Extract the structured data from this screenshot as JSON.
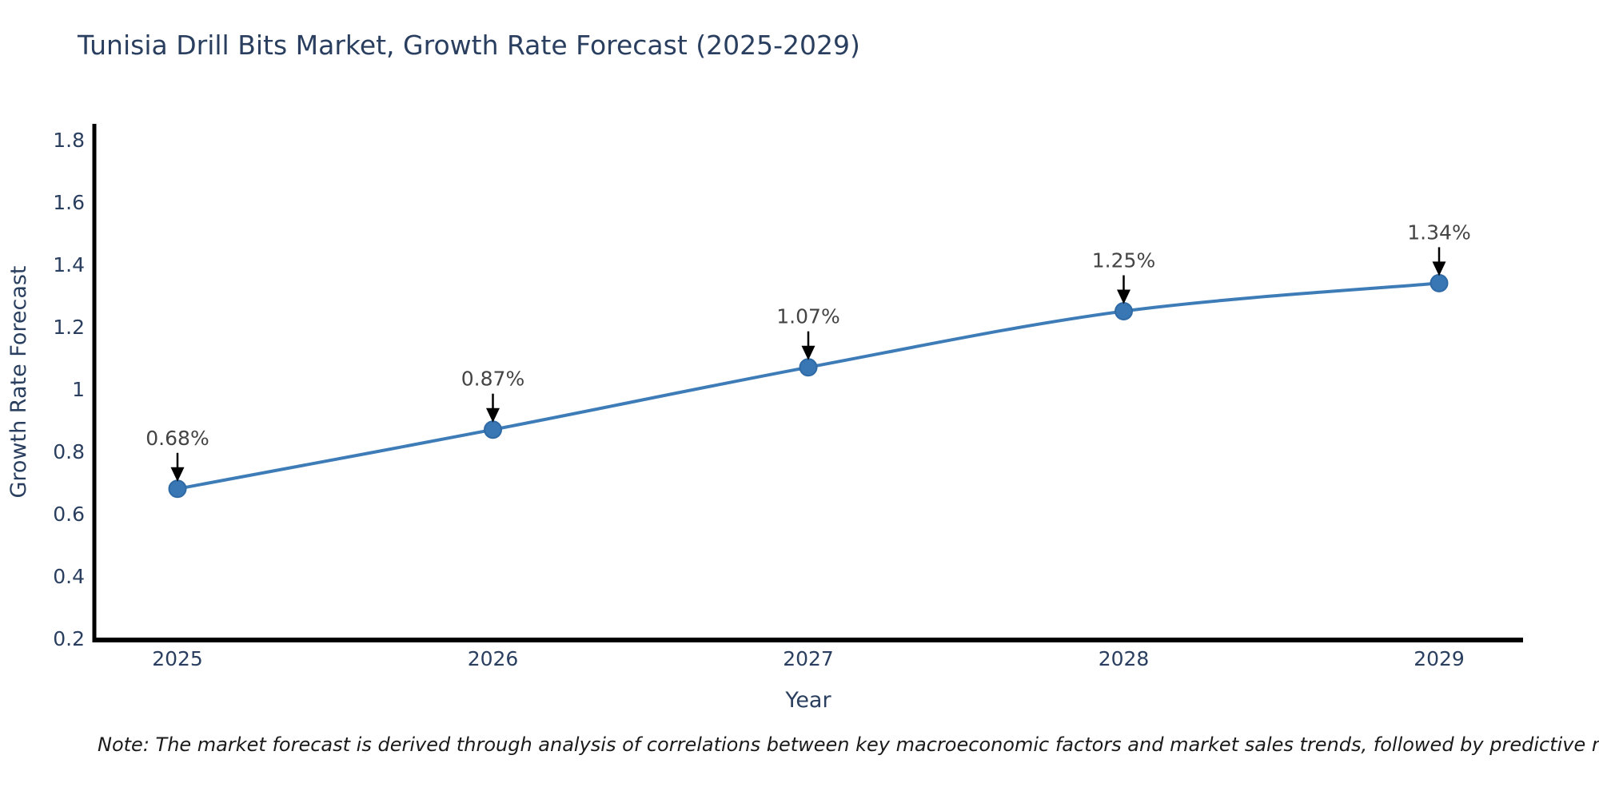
{
  "page": {
    "title": "Tunisia Drill Bits Market, Growth Rate Forecast (2025-2029)",
    "note": "Note: The market forecast is derived through analysis of correlations between key macroeconomic factors and market sales trends, followed by predictive modeling to project future sales"
  },
  "chart_data": {
    "type": "line",
    "title": "Tunisia Drill Bits Market, Growth Rate Forecast (2025-2029)",
    "categories": [
      "2025",
      "2026",
      "2027",
      "2028",
      "2029"
    ],
    "series": [
      {
        "name": "Growth Rate Forecast",
        "values": [
          0.68,
          0.87,
          1.07,
          1.25,
          1.34
        ]
      }
    ],
    "point_labels": [
      "0.68%",
      "0.87%",
      "1.07%",
      "1.25%",
      "1.34%"
    ],
    "xlabel": "Year",
    "ylabel": "Growth Rate Forecast",
    "ylim": [
      0.2,
      1.8
    ],
    "ytick_labels": [
      "0.2",
      "0.4",
      "0.6",
      "0.8",
      "1",
      "1.2",
      "1.4",
      "1.6",
      "1.8"
    ],
    "yticks": [
      0.2,
      0.4,
      0.6,
      0.8,
      1.0,
      1.2,
      1.4,
      1.6,
      1.8
    ],
    "grid": false,
    "legend_position": "none",
    "annotation_arrows": true,
    "colors": {
      "line": "#3e7cb8",
      "marker_fill": "#3876b4",
      "marker_edge": "#2f6aa5",
      "axis_line": "#000000",
      "axis_text": "#2a3f5f",
      "annotation_text": "#444444",
      "annotation_arrow": "#000000",
      "background": "#ffffff",
      "note_text": "#1a1a1a"
    }
  }
}
